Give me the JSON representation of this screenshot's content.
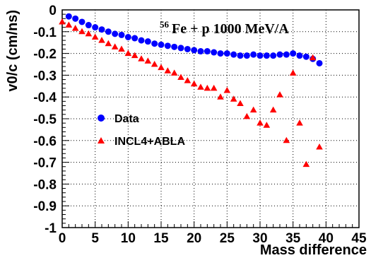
{
  "chart_data": {
    "type": "scatter",
    "title": {
      "superscript": "56",
      "main": "Fe + p 1000 MeV/A"
    },
    "xlabel": "Mass difference",
    "ylabel": "v0/c (cm/ns)",
    "xlim": [
      0,
      45
    ],
    "ylim": [
      -1,
      0
    ],
    "x_ticks": [
      0,
      5,
      10,
      15,
      20,
      25,
      30,
      35,
      40,
      45
    ],
    "y_ticks": [
      0,
      -0.1,
      -0.2,
      -0.3,
      -0.4,
      -0.5,
      -0.6,
      -0.7,
      -0.8,
      -0.9,
      -1
    ],
    "x_tick_labels": [
      "0",
      "5",
      "10",
      "15",
      "20",
      "25",
      "30",
      "35",
      "40",
      "45"
    ],
    "y_tick_labels": [
      "0",
      "-0.1",
      "-0.2",
      "-0.3",
      "-0.4",
      "-0.5",
      "-0.6",
      "-0.7",
      "-0.8",
      "-0.9",
      "-1"
    ],
    "grid": true,
    "legend_position": "center-left",
    "series": [
      {
        "name": "Data",
        "marker": "circle",
        "color": "#0000ff",
        "x": [
          1,
          2,
          3,
          4,
          5,
          6,
          7,
          8,
          9,
          10,
          11,
          12,
          13,
          14,
          15,
          16,
          17,
          18,
          19,
          20,
          21,
          22,
          23,
          24,
          25,
          26,
          27,
          28,
          29,
          30,
          31,
          32,
          33,
          34,
          35,
          36,
          37,
          38,
          39
        ],
        "y": [
          -0.03,
          -0.04,
          -0.055,
          -0.07,
          -0.08,
          -0.09,
          -0.1,
          -0.11,
          -0.115,
          -0.125,
          -0.13,
          -0.14,
          -0.145,
          -0.155,
          -0.16,
          -0.165,
          -0.17,
          -0.175,
          -0.18,
          -0.185,
          -0.19,
          -0.19,
          -0.195,
          -0.2,
          -0.2,
          -0.205,
          -0.21,
          -0.21,
          -0.205,
          -0.21,
          -0.21,
          -0.21,
          -0.205,
          -0.205,
          -0.2,
          -0.21,
          -0.215,
          -0.225,
          -0.245
        ]
      },
      {
        "name": "INCL4+ABLA",
        "marker": "triangle",
        "color": "#ff0000",
        "x": [
          0,
          1,
          2,
          3,
          4,
          5,
          6,
          7,
          8,
          9,
          10,
          11,
          12,
          13,
          14,
          15,
          16,
          17,
          18,
          19,
          20,
          21,
          22,
          23,
          24,
          25,
          26,
          27,
          28,
          29,
          30,
          31,
          32,
          33,
          34,
          35,
          36,
          37,
          38,
          39
        ],
        "y": [
          -0.055,
          -0.07,
          -0.085,
          -0.1,
          -0.11,
          -0.125,
          -0.14,
          -0.155,
          -0.17,
          -0.18,
          -0.2,
          -0.21,
          -0.225,
          -0.235,
          -0.25,
          -0.265,
          -0.28,
          -0.29,
          -0.31,
          -0.325,
          -0.34,
          -0.355,
          -0.36,
          -0.36,
          -0.4,
          -0.37,
          -0.41,
          -0.43,
          -0.49,
          -0.46,
          -0.52,
          -0.53,
          -0.46,
          -0.39,
          -0.6,
          -0.29,
          -0.52,
          -0.71,
          -0.22,
          -0.63
        ]
      }
    ]
  }
}
